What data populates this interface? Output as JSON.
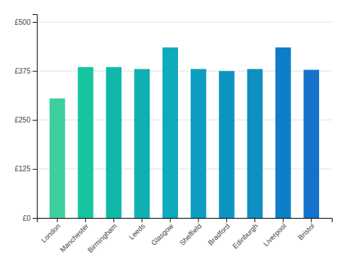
{
  "chart_data": {
    "type": "bar",
    "categories": [
      "London",
      "Manchester",
      "Birmingham",
      "Leeds",
      "Glasgow",
      "Sheffield",
      "Bradford",
      "Edinburgh",
      "Liverpool",
      "Bristol"
    ],
    "values": [
      305,
      385,
      385,
      380,
      435,
      380,
      375,
      380,
      435,
      378
    ],
    "colors": [
      "#3ecfa0",
      "#17c4a0",
      "#10b8a8",
      "#0fb0b0",
      "#0faabb",
      "#0d9dc0",
      "#0d95c0",
      "#0e90c2",
      "#0d7ec8",
      "#1472cc"
    ],
    "ylim": [
      0,
      520
    ],
    "yticks": [
      {
        "value": 0,
        "label": "£0"
      },
      {
        "value": 125,
        "label": "£125"
      },
      {
        "value": 250,
        "label": "£250"
      },
      {
        "value": 375,
        "label": "£375"
      },
      {
        "value": 500,
        "label": "£500"
      }
    ],
    "grid": true
  }
}
